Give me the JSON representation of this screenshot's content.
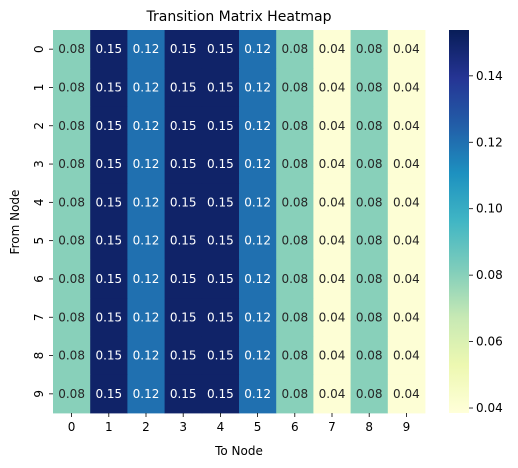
{
  "chart_data": {
    "type": "heatmap",
    "title": "Transition Matrix Heatmap",
    "xlabel": "To Node",
    "ylabel": "From Node",
    "x_categories": [
      "0",
      "1",
      "2",
      "3",
      "4",
      "5",
      "6",
      "7",
      "8",
      "9"
    ],
    "y_categories": [
      "0",
      "1",
      "2",
      "3",
      "4",
      "5",
      "6",
      "7",
      "8",
      "9"
    ],
    "values": [
      [
        0.08,
        0.15,
        0.12,
        0.15,
        0.15,
        0.12,
        0.08,
        0.04,
        0.08,
        0.04
      ],
      [
        0.08,
        0.15,
        0.12,
        0.15,
        0.15,
        0.12,
        0.08,
        0.04,
        0.08,
        0.04
      ],
      [
        0.08,
        0.15,
        0.12,
        0.15,
        0.15,
        0.12,
        0.08,
        0.04,
        0.08,
        0.04
      ],
      [
        0.08,
        0.15,
        0.12,
        0.15,
        0.15,
        0.12,
        0.08,
        0.04,
        0.08,
        0.04
      ],
      [
        0.08,
        0.15,
        0.12,
        0.15,
        0.15,
        0.12,
        0.08,
        0.04,
        0.08,
        0.04
      ],
      [
        0.08,
        0.15,
        0.12,
        0.15,
        0.15,
        0.12,
        0.08,
        0.04,
        0.08,
        0.04
      ],
      [
        0.08,
        0.15,
        0.12,
        0.15,
        0.15,
        0.12,
        0.08,
        0.04,
        0.08,
        0.04
      ],
      [
        0.08,
        0.15,
        0.12,
        0.15,
        0.15,
        0.12,
        0.08,
        0.04,
        0.08,
        0.04
      ],
      [
        0.08,
        0.15,
        0.12,
        0.15,
        0.15,
        0.12,
        0.08,
        0.04,
        0.08,
        0.04
      ],
      [
        0.08,
        0.15,
        0.12,
        0.15,
        0.15,
        0.12,
        0.08,
        0.04,
        0.08,
        0.04
      ]
    ],
    "colorbar": {
      "ticks": [
        "0.04",
        "0.06",
        "0.08",
        "0.10",
        "0.12",
        "0.14"
      ],
      "tick_values": [
        0.04,
        0.06,
        0.08,
        0.1,
        0.12,
        0.14
      ],
      "range": [
        0.0385,
        0.1538
      ]
    },
    "colormap": "YlGnBu",
    "annotations": true
  }
}
